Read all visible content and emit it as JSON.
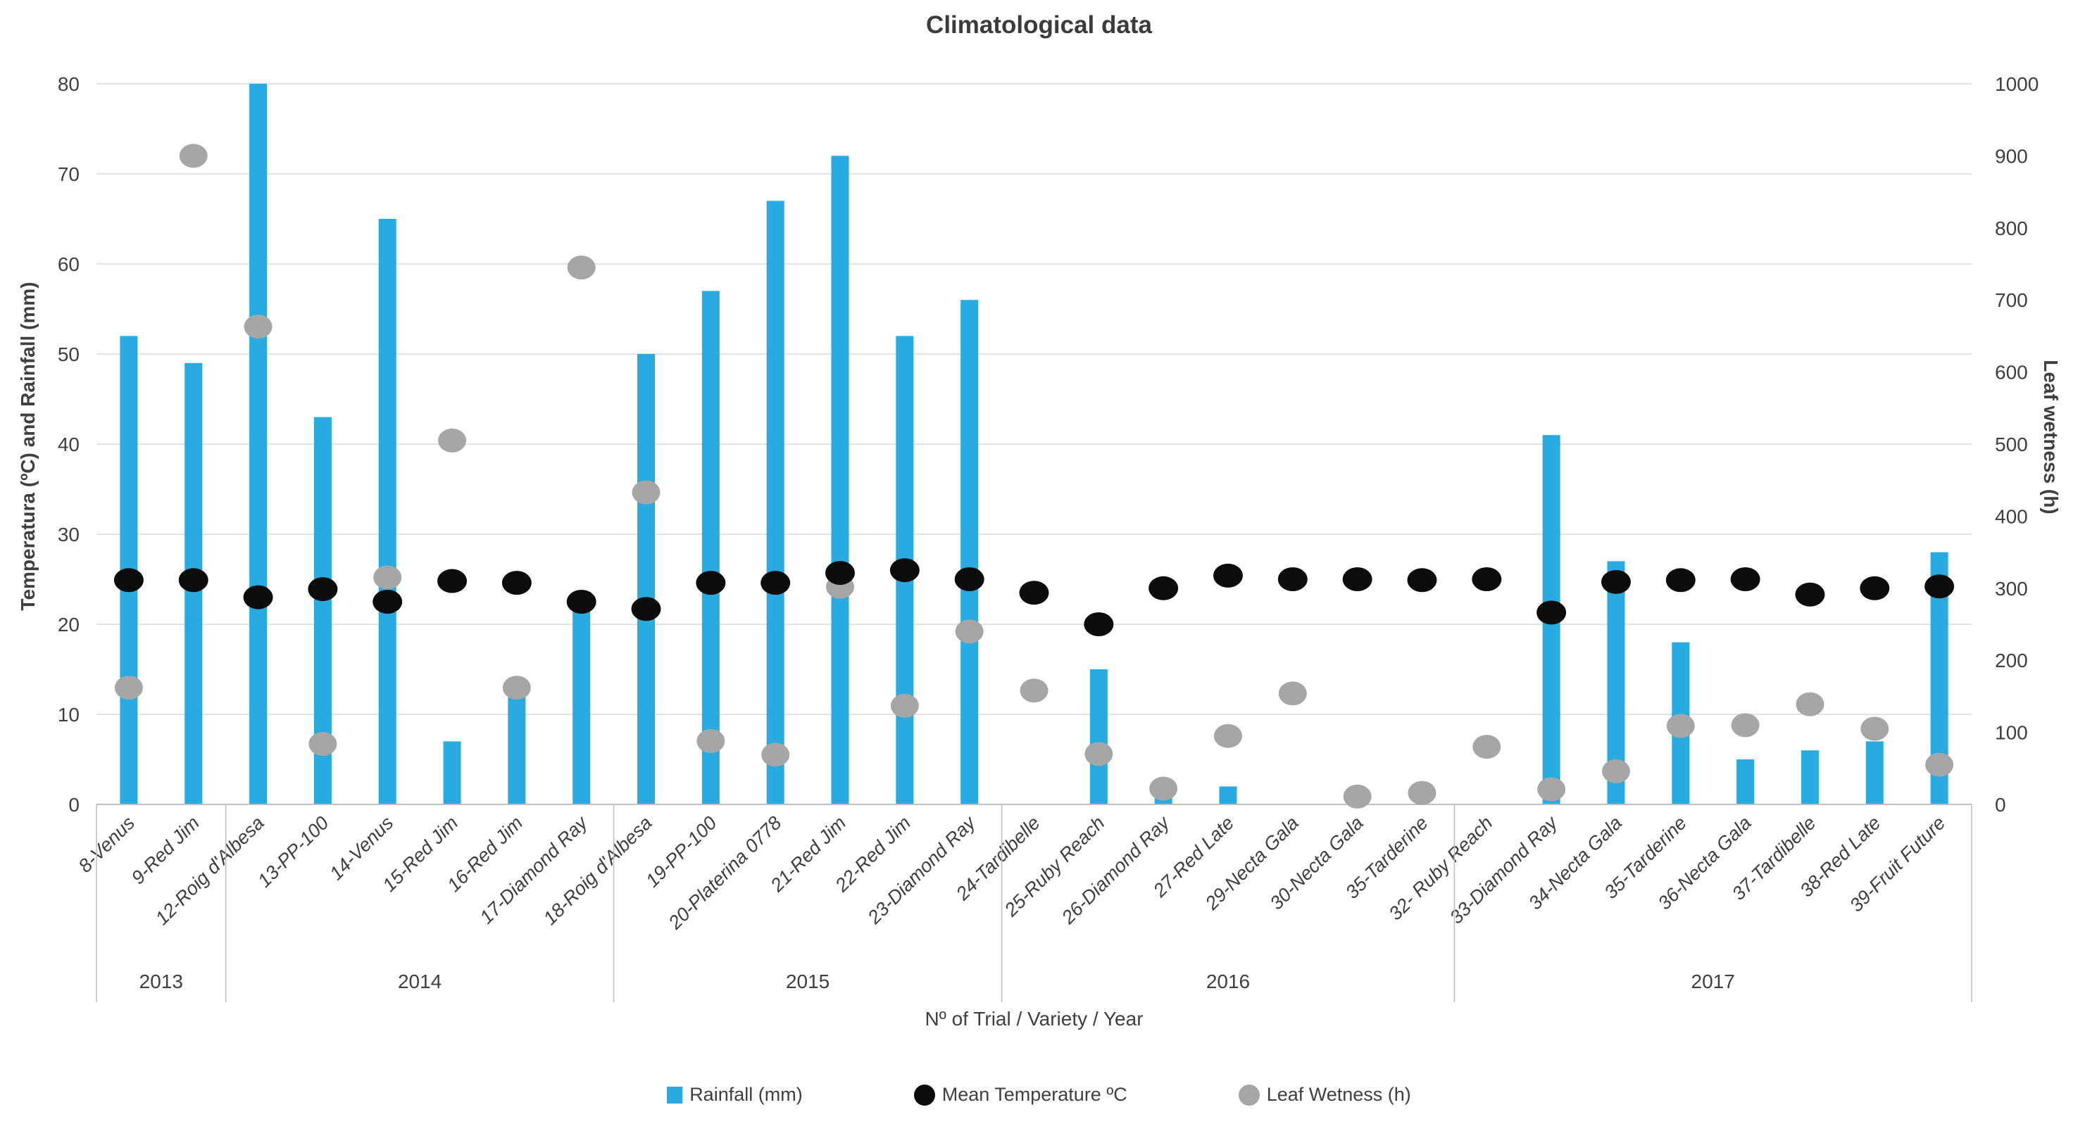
{
  "chart_data": {
    "type": "combo-bar-scatter",
    "title": "Climatological data",
    "x_axis_title": "Nº of Trial / Variety / Year",
    "grid": true,
    "legend_position": "bottom",
    "legend": [
      "Rainfall (mm)",
      "Mean Temperature ºC",
      "Leaf Wetness (h)"
    ],
    "colors": {
      "rainfall_bar": "#29abe2",
      "temperature_dot": "#0c0c0c",
      "wetness_dot": "#a6a6a6",
      "gridline": "#d9d9d9",
      "axis_line": "#bfbfbf",
      "text": "#3f3f3f"
    },
    "y_left": {
      "title": "Temperatura (ºC) and Rainfall (mm)",
      "min": 0,
      "max": 80,
      "step": 10,
      "ticks": [
        "0",
        "10",
        "20",
        "30",
        "40",
        "50",
        "60",
        "70",
        "80"
      ]
    },
    "y_right": {
      "title": "Leaf wetness (h)",
      "min": 0,
      "max": 1000,
      "step": 100,
      "ticks": [
        "0",
        "100",
        "200",
        "300",
        "400",
        "500",
        "600",
        "700",
        "800",
        "900",
        "1000"
      ]
    },
    "categories": [
      "8-Venus",
      "9-Red Jim",
      "12-Roig d'Albesa",
      "13-PP-100",
      "14-Venus",
      "15-Red Jim",
      "16-Red Jim",
      "17-Diamond Ray",
      "18-Roig d'Albesa",
      "19-PP-100",
      "20-Platerina 0778",
      "21-Red Jim",
      "22-Red Jim",
      "23-Diamond Ray",
      "24-Tardibelle",
      "25-Ruby Reach",
      "26-Diamond Ray",
      "27-Red Late",
      "29-Necta Gala",
      "30-Necta Gala",
      "35-Tarderine",
      "32- Ruby Reach",
      "33-Diamond Ray",
      "34-Necta Gala",
      "35-Tarderine",
      "36-Necta Gala",
      "37-Tardibelle",
      "38-Red Late",
      "39-Fruit Future"
    ],
    "year_groups": [
      {
        "label": "2013",
        "count": 2
      },
      {
        "label": "2014",
        "count": 6
      },
      {
        "label": "2015",
        "count": 6
      },
      {
        "label": "2016",
        "count": 7
      },
      {
        "label": "2017",
        "count": 8
      }
    ],
    "series": [
      {
        "name": "Rainfall (mm)",
        "type": "bar",
        "axis": "left",
        "values": [
          52,
          49,
          80,
          43,
          65,
          7,
          12,
          22,
          50,
          57,
          67,
          72,
          52,
          56,
          0,
          15,
          1,
          2,
          0,
          0,
          0,
          0,
          41,
          27,
          18,
          5,
          6,
          7,
          28
        ]
      },
      {
        "name": "Mean Temperature ºC",
        "type": "scatter",
        "axis": "left",
        "values": [
          24.9,
          24.9,
          23.0,
          23.9,
          22.5,
          24.8,
          24.6,
          22.5,
          21.7,
          24.6,
          24.6,
          25.7,
          26.0,
          25.0,
          23.5,
          20.0,
          24.0,
          25.4,
          25.0,
          25.0,
          24.9,
          25.0,
          21.3,
          24.7,
          24.9,
          25.0,
          23.3,
          24.0,
          24.2
        ]
      },
      {
        "name": "Leaf Wetness (h)",
        "type": "scatter",
        "axis": "right",
        "values": [
          162,
          900,
          663,
          84,
          315,
          505,
          162,
          745,
          433,
          88,
          69,
          302,
          137,
          240,
          158,
          70,
          22,
          95,
          154,
          11,
          16,
          80,
          21,
          46,
          109,
          110,
          139,
          105,
          55
        ]
      }
    ]
  }
}
